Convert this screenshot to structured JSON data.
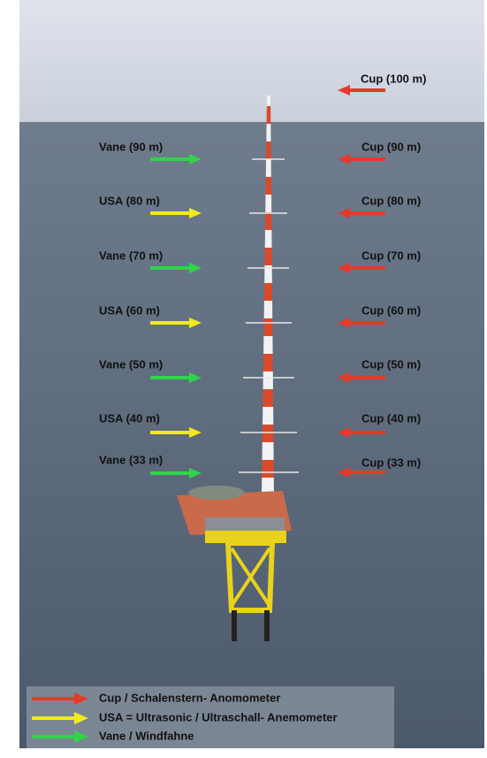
{
  "left_labels": [
    "Vane (90 m)",
    "USA (80 m)",
    "Vane (70 m)",
    "USA (60 m)",
    "Vane (50 m)",
    "USA (40 m)",
    "Vane (33 m)"
  ],
  "right_labels": [
    "Cup (100 m)",
    "Cup (90 m)",
    "Cup (80 m)",
    "Cup (70 m)",
    "Cup (60 m)",
    "Cup (50 m)",
    "Cup (40 m)",
    "Cup (33 m)"
  ],
  "legend": [
    "Cup / Schalenstern- Anomometer",
    "USA = Ultrasonic / Ultraschall- Anemometer",
    "Vane / Windfahne"
  ]
}
